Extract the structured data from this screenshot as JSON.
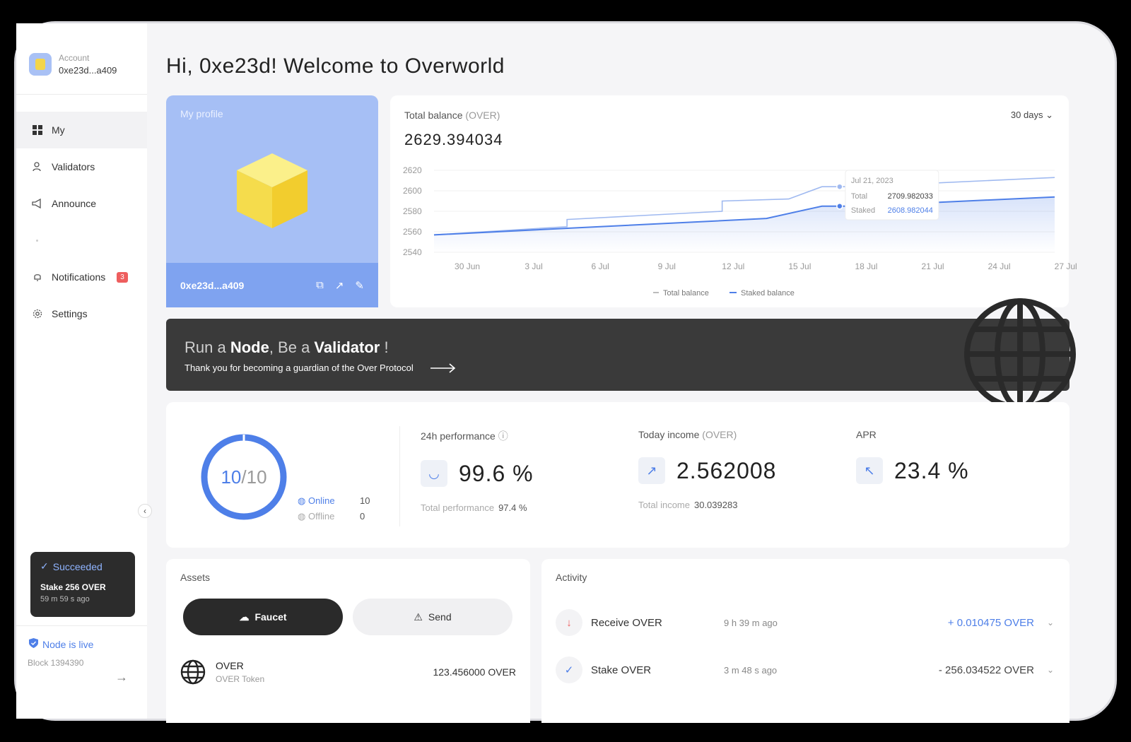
{
  "sidebar": {
    "account_label": "Account",
    "account_addr": "0xe23d...a409",
    "nav": [
      {
        "label": "My"
      },
      {
        "label": "Validators"
      },
      {
        "label": "Announce"
      }
    ],
    "notifications_label": "Notifications",
    "notifications_count": "3",
    "settings_label": "Settings",
    "toast": {
      "title": "Succeeded",
      "message": "Stake 256 OVER",
      "time": "59 m 59 s ago"
    },
    "node_status": "Node is live",
    "block": "Block 1394390"
  },
  "header": {
    "title": "Hi, 0xe23d! Welcome to Overworld"
  },
  "profile": {
    "label": "My profile",
    "address": "0xe23d...a409"
  },
  "balance": {
    "label": "Total balance",
    "unit": "(OVER)",
    "value": "2629.394034",
    "range": "30 days",
    "tooltip": {
      "date": "Jul 21, 2023",
      "total_label": "Total",
      "total_value": "2709.982033",
      "staked_label": "Staked",
      "staked_value": "2608.982044"
    },
    "legend_total": "Total balance",
    "legend_staked": "Staked balance"
  },
  "chart_data": {
    "type": "line",
    "x": [
      "30 Jun",
      "3 Jul",
      "6 Jul",
      "9 Jul",
      "12 Jul",
      "15 Jul",
      "18 Jul",
      "21 Jul",
      "24 Jul",
      "27 Jul"
    ],
    "yticks": [
      2620,
      2600,
      2580,
      2560,
      2540
    ],
    "ylim": [
      2540,
      2620
    ],
    "series": [
      {
        "name": "Total balance",
        "color": "#9fb9f0",
        "points": [
          [
            0,
            2557
          ],
          [
            6,
            2565
          ],
          [
            6,
            2572
          ],
          [
            13,
            2580
          ],
          [
            13,
            2590
          ],
          [
            16,
            2592
          ],
          [
            17.5,
            2604
          ],
          [
            19,
            2604
          ],
          [
            28,
            2613
          ]
        ]
      },
      {
        "name": "Staked balance",
        "color": "#4e7fe8",
        "points": [
          [
            0,
            2557
          ],
          [
            15,
            2573
          ],
          [
            17.5,
            2585
          ],
          [
            19,
            2585
          ],
          [
            28,
            2594
          ]
        ]
      }
    ],
    "grid": true,
    "legend": "bottom"
  },
  "banner": {
    "p1": "Run a ",
    "p2": "Node",
    "p3": ", Be a ",
    "p4": "Validator",
    "p5": " !",
    "sub": "Thank you for becoming a guardian of the Over Protocol"
  },
  "performance": {
    "online_count": "10",
    "total_count": "10",
    "online_label": "Online",
    "online_value": "10",
    "offline_label": "Offline",
    "offline_value": "0",
    "perf_label": "24h performance",
    "perf_value": "99.6 %",
    "perf_sub_label": "Total performance",
    "perf_sub_value": "97.4 %",
    "income_label": "Today income",
    "income_unit": "(OVER)",
    "income_value": "2.562008",
    "income_sub_label": "Total income",
    "income_sub_value": "30.039283",
    "apr_label": "APR",
    "apr_value": "23.4 %"
  },
  "assets": {
    "title": "Assets",
    "faucet": "Faucet",
    "send": "Send",
    "rows": [
      {
        "name": "OVER",
        "sub": "OVER Token",
        "balance": "123.456000 OVER"
      }
    ]
  },
  "activity": {
    "title": "Activity",
    "rows": [
      {
        "name": "Receive OVER",
        "time": "9 h 39 m ago",
        "amount": "+ 0.010475 OVER"
      },
      {
        "name": "Stake OVER",
        "time": "3 m 48 s ago",
        "amount": "- 256.034522 OVER"
      }
    ]
  },
  "colors": {
    "accent": "#4e7fe8",
    "profile_bg": "#a6bff5",
    "banner_bg": "#3a3a3a",
    "alert": "#ee5e5e"
  }
}
